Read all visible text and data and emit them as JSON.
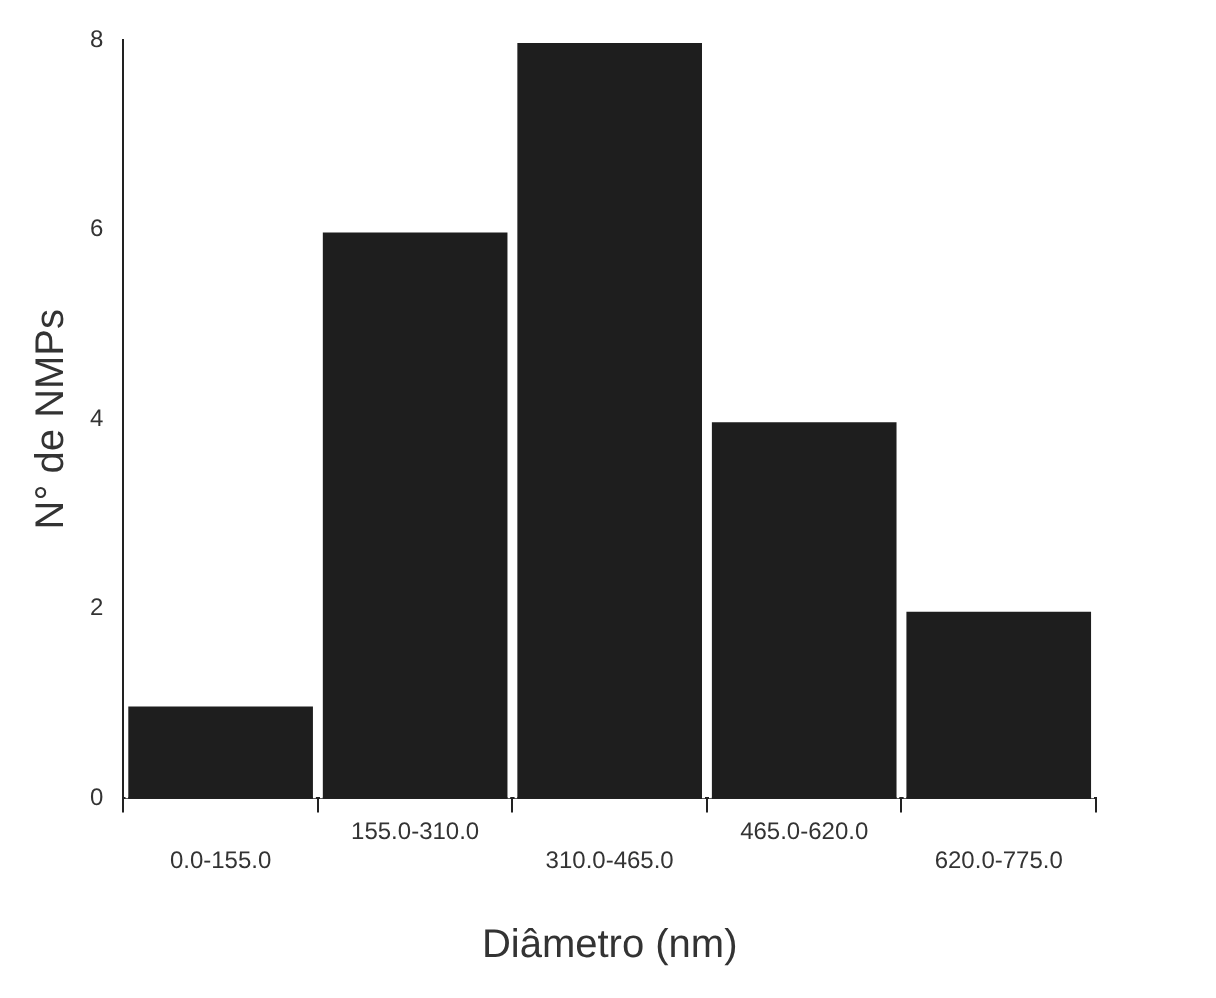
{
  "chart_data": {
    "type": "bar",
    "categories": [
      "0.0-155.0",
      "155.0-310.0",
      "310.0-465.0",
      "465.0-620.0",
      "620.0-775.0"
    ],
    "values": [
      1,
      6,
      8,
      4,
      2
    ],
    "color": "#1e1e1e",
    "xlabel": "Diâmetro (nm)",
    "ylabel": "N° de NMPs",
    "ylim": [
      0,
      8
    ],
    "yticks": [
      0,
      2,
      4,
      6,
      8
    ],
    "grid": false,
    "legend": false
  }
}
